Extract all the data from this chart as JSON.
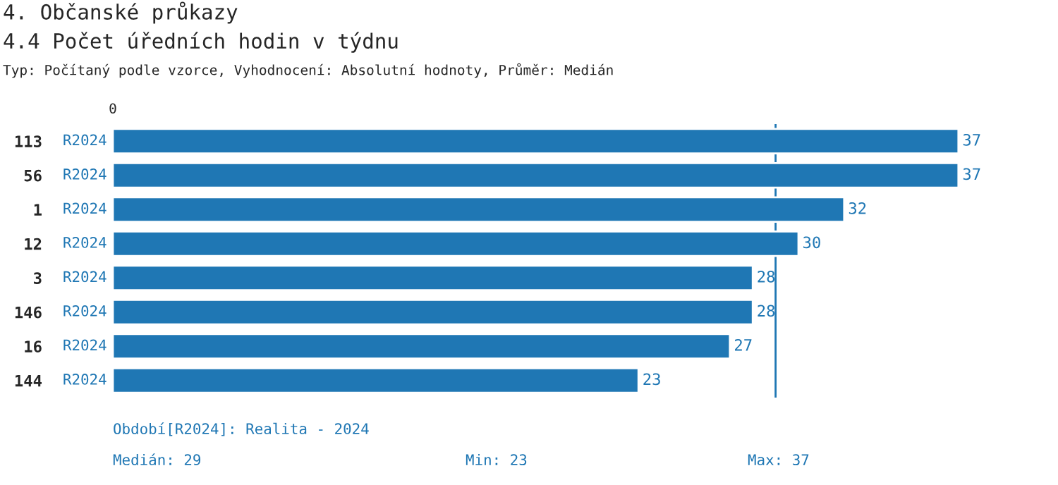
{
  "chart_data": {
    "type": "bar",
    "orientation": "horizontal",
    "title": "4. Občanské průkazy",
    "subtitle": "4.4 Počet úředních hodin v týdnu",
    "categories": [
      "113",
      "56",
      "1",
      "12",
      "3",
      "146",
      "16",
      "144"
    ],
    "values": [
      37,
      37,
      32,
      30,
      28,
      28,
      27,
      23
    ],
    "color": "#1f77b4",
    "data_labels": true,
    "grid": false,
    "ref_lines": [
      {
        "axis": "x",
        "value": 29,
        "color": "#1f77b4",
        "line_style": "solid"
      }
    ],
    "annotations": [
      "Typ: Počítaný podle vzorce, Vyhodnocení: Absolutní hodnoty, Průměr: Medián",
      "0",
      "R2024",
      "R2024",
      "R2024",
      "R2024",
      "R2024",
      "R2024",
      "R2024",
      "R2024",
      "Období[R2024]: Realita - 2024",
      "Medián: 29",
      "Min: 23",
      "Max: 37"
    ]
  }
}
